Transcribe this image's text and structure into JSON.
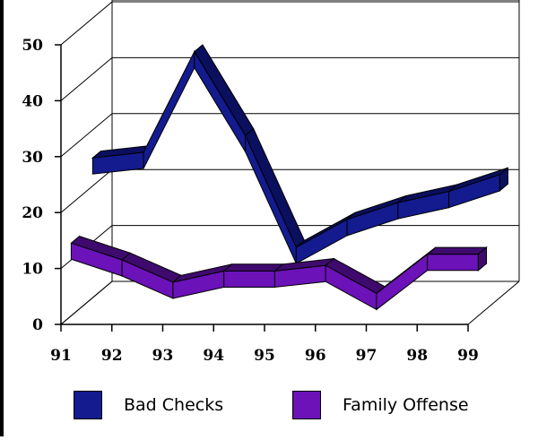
{
  "chart_data": {
    "type": "line",
    "style": "3d-ribbon",
    "categories": [
      "91",
      "92",
      "93",
      "94",
      "95",
      "96",
      "97",
      "98",
      "99"
    ],
    "yticks": [
      "0",
      "10",
      "20",
      "30",
      "40",
      "50"
    ],
    "ylim": [
      0,
      50
    ],
    "grid": true,
    "legend_position": "bottom",
    "series": [
      {
        "name": "Bad Checks",
        "color": "#131b8f",
        "side_color": "#0a0f5e",
        "values": [
          25,
          26,
          44,
          29,
          9,
          14,
          17,
          19,
          22
        ]
      },
      {
        "name": "Family Offense",
        "color": "#6b12b8",
        "side_color": "#3f0a6e",
        "values": [
          13,
          10,
          6,
          8,
          8,
          9,
          4,
          11,
          11
        ]
      }
    ]
  }
}
